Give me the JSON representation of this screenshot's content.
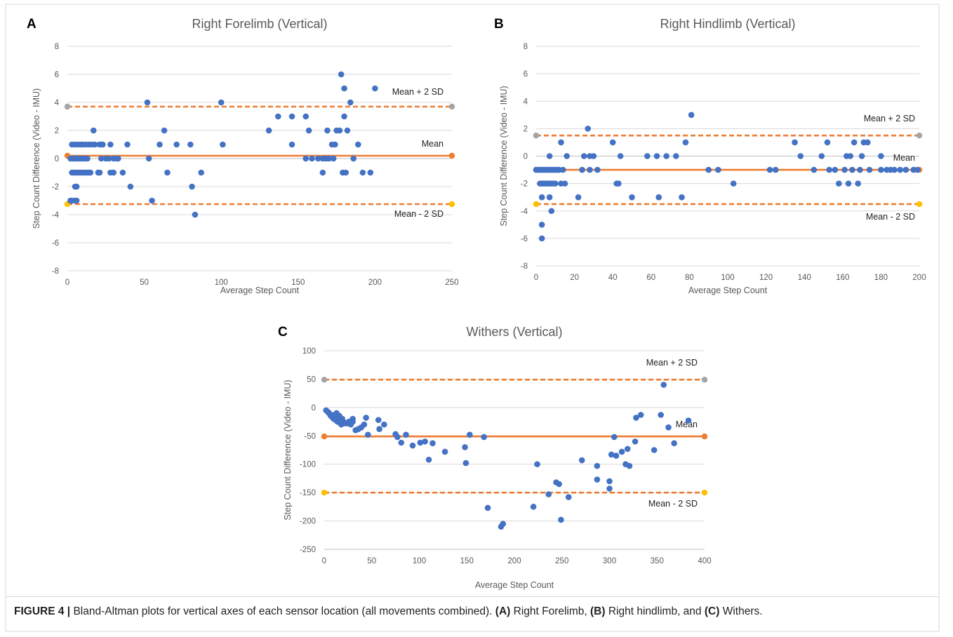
{
  "caption": {
    "label": "FIGURE 4 |",
    "text_1": " Bland-Altman plots for vertical axes of each sensor location (all movements combined). ",
    "a": "(A)",
    "text_2": " Right Forelimb, ",
    "b": "(B)",
    "text_3": " Right hindlimb, and ",
    "c": "(C)",
    "text_4": " Withers."
  },
  "colors": {
    "points": "#4472c4",
    "mean_line": "#ed7d31",
    "upper_end": "#a5a5a5",
    "lower_end": "#ffc000",
    "grid": "#d9d9d9",
    "axis_text": "#595959"
  },
  "chart_data": [
    {
      "panel": "A",
      "type": "scatter",
      "title": "Right Forelimb (Vertical)",
      "xlabel": "Average Step Count",
      "ylabel": "Step Count Difference (Video - IMU)",
      "xlim": [
        0,
        250
      ],
      "ylim": [
        -8,
        8
      ],
      "xticks": [
        0,
        50,
        100,
        150,
        200,
        250
      ],
      "yticks": [
        -8,
        -6,
        -4,
        -2,
        0,
        2,
        4,
        6,
        8
      ],
      "grid": "horizontal",
      "lines": [
        {
          "label": "Mean + 2 SD",
          "value": 3.7,
          "style": "dashed"
        },
        {
          "label": "Mean",
          "value": 0.2,
          "style": "solid"
        },
        {
          "label": "Mean - 2 SD",
          "value": -3.25,
          "style": "dashed"
        }
      ],
      "points": [
        [
          2,
          -3
        ],
        [
          3,
          -3
        ],
        [
          5,
          -3
        ],
        [
          6,
          -3
        ],
        [
          2,
          0
        ],
        [
          3,
          0
        ],
        [
          4,
          0
        ],
        [
          5,
          0
        ],
        [
          6,
          0
        ],
        [
          7,
          0
        ],
        [
          8,
          0
        ],
        [
          9,
          0
        ],
        [
          10,
          0
        ],
        [
          11,
          0
        ],
        [
          12,
          0
        ],
        [
          13,
          0
        ],
        [
          3,
          1
        ],
        [
          5,
          1
        ],
        [
          7,
          1
        ],
        [
          9,
          1
        ],
        [
          10,
          1
        ],
        [
          12,
          1
        ],
        [
          14,
          1
        ],
        [
          16,
          1
        ],
        [
          18,
          1
        ],
        [
          21,
          1
        ],
        [
          22,
          1
        ],
        [
          23,
          1
        ],
        [
          3,
          -1
        ],
        [
          4,
          -1
        ],
        [
          5,
          -1
        ],
        [
          6,
          -1
        ],
        [
          7,
          -1
        ],
        [
          8,
          -1
        ],
        [
          9,
          -1
        ],
        [
          10,
          -1
        ],
        [
          11,
          -1
        ],
        [
          12,
          -1
        ],
        [
          13,
          -1
        ],
        [
          14,
          -1
        ],
        [
          15,
          -1
        ],
        [
          5,
          -2
        ],
        [
          6,
          -2
        ],
        [
          17,
          2
        ],
        [
          20,
          -1
        ],
        [
          21,
          -1
        ],
        [
          22,
          0
        ],
        [
          25,
          0
        ],
        [
          27,
          0
        ],
        [
          28,
          1
        ],
        [
          28,
          -1
        ],
        [
          30,
          -1
        ],
        [
          30,
          0
        ],
        [
          32,
          0
        ],
        [
          33,
          0
        ],
        [
          36,
          -1
        ],
        [
          39,
          1
        ],
        [
          41,
          -2
        ],
        [
          52,
          4
        ],
        [
          53,
          0
        ],
        [
          55,
          -3
        ],
        [
          60,
          1
        ],
        [
          63,
          2
        ],
        [
          65,
          -1
        ],
        [
          71,
          1
        ],
        [
          80,
          1
        ],
        [
          81,
          -2
        ],
        [
          83,
          -4
        ],
        [
          87,
          -1
        ],
        [
          100,
          4
        ],
        [
          101,
          1
        ],
        [
          131,
          2
        ],
        [
          137,
          3
        ],
        [
          146,
          3
        ],
        [
          146,
          1
        ],
        [
          155,
          3
        ],
        [
          155,
          0
        ],
        [
          157,
          2
        ],
        [
          159,
          0
        ],
        [
          163,
          0
        ],
        [
          166,
          -1
        ],
        [
          166,
          0
        ],
        [
          168,
          0
        ],
        [
          169,
          2
        ],
        [
          170,
          0
        ],
        [
          172,
          1
        ],
        [
          173,
          0
        ],
        [
          174,
          1
        ],
        [
          175,
          2
        ],
        [
          177,
          2
        ],
        [
          178,
          6
        ],
        [
          179,
          -1
        ],
        [
          180,
          5
        ],
        [
          180,
          3
        ],
        [
          181,
          -1
        ],
        [
          182,
          2
        ],
        [
          184,
          4
        ],
        [
          186,
          0
        ],
        [
          189,
          1
        ],
        [
          192,
          -1
        ],
        [
          197,
          -1
        ],
        [
          200,
          5
        ]
      ]
    },
    {
      "panel": "B",
      "type": "scatter",
      "title": "Right Hindlimb (Vertical)",
      "xlabel": "Average Step Count",
      "ylabel": "Step Count Difference (Video - IMU)",
      "xlim": [
        0,
        200
      ],
      "ylim": [
        -8,
        8
      ],
      "xticks": [
        0,
        20,
        40,
        60,
        80,
        100,
        120,
        140,
        160,
        180,
        200
      ],
      "yticks": [
        -8,
        -6,
        -4,
        -2,
        0,
        2,
        4,
        6,
        8
      ],
      "grid": "horizontal",
      "lines": [
        {
          "label": "Mean + 2 SD",
          "value": 1.5,
          "style": "dashed"
        },
        {
          "label": "Mean",
          "value": -1.0,
          "style": "solid"
        },
        {
          "label": "Mean - 2 SD",
          "value": -3.5,
          "style": "dashed"
        }
      ],
      "points": [
        [
          0,
          -1
        ],
        [
          1,
          -1
        ],
        [
          2,
          -1
        ],
        [
          3,
          -1
        ],
        [
          4,
          -1
        ],
        [
          5,
          -1
        ],
        [
          6,
          -1
        ],
        [
          7,
          -1
        ],
        [
          8,
          -1
        ],
        [
          9,
          -1
        ],
        [
          10,
          -1
        ],
        [
          11,
          -1
        ],
        [
          12,
          -1
        ],
        [
          14,
          -1
        ],
        [
          2,
          -2
        ],
        [
          3,
          -2
        ],
        [
          4,
          -2
        ],
        [
          5,
          -2
        ],
        [
          6,
          -2
        ],
        [
          7,
          -2
        ],
        [
          8,
          -2
        ],
        [
          9,
          -2
        ],
        [
          10,
          -2
        ],
        [
          13,
          -2
        ],
        [
          15,
          -2
        ],
        [
          3,
          -3
        ],
        [
          7,
          -3
        ],
        [
          3,
          -5
        ],
        [
          3,
          -6
        ],
        [
          8,
          -4
        ],
        [
          7,
          0
        ],
        [
          13,
          1
        ],
        [
          16,
          0
        ],
        [
          22,
          -3
        ],
        [
          24,
          -1
        ],
        [
          25,
          0
        ],
        [
          27,
          2
        ],
        [
          28,
          0
        ],
        [
          28,
          -1
        ],
        [
          30,
          0
        ],
        [
          32,
          -1
        ],
        [
          40,
          1
        ],
        [
          42,
          -2
        ],
        [
          43,
          -2
        ],
        [
          44,
          0
        ],
        [
          50,
          -3
        ],
        [
          58,
          0
        ],
        [
          63,
          0
        ],
        [
          64,
          -3
        ],
        [
          68,
          0
        ],
        [
          73,
          0
        ],
        [
          76,
          -3
        ],
        [
          78,
          1
        ],
        [
          81,
          3
        ],
        [
          90,
          -1
        ],
        [
          95,
          -1
        ],
        [
          103,
          -2
        ],
        [
          122,
          -1
        ],
        [
          125,
          -1
        ],
        [
          135,
          1
        ],
        [
          138,
          0
        ],
        [
          145,
          -1
        ],
        [
          149,
          0
        ],
        [
          152,
          1
        ],
        [
          153,
          -1
        ],
        [
          156,
          -1
        ],
        [
          158,
          -2
        ],
        [
          161,
          -1
        ],
        [
          162,
          0
        ],
        [
          163,
          -2
        ],
        [
          164,
          0
        ],
        [
          165,
          -1
        ],
        [
          166,
          1
        ],
        [
          168,
          -2
        ],
        [
          169,
          -1
        ],
        [
          170,
          0
        ],
        [
          171,
          1
        ],
        [
          173,
          1
        ],
        [
          174,
          -1
        ],
        [
          180,
          -1
        ],
        [
          180,
          0
        ],
        [
          183,
          -1
        ],
        [
          185,
          -1
        ],
        [
          187,
          -1
        ],
        [
          190,
          -1
        ],
        [
          193,
          -1
        ],
        [
          197,
          -1
        ],
        [
          199,
          -1
        ]
      ]
    },
    {
      "panel": "C",
      "type": "scatter",
      "title": "Withers (Vertical)",
      "xlabel": "Average Step Count",
      "ylabel": "Step Count Difference (Video - IMU)",
      "xlim": [
        0,
        400
      ],
      "ylim": [
        -250,
        100
      ],
      "xticks": [
        0,
        50,
        100,
        150,
        200,
        250,
        300,
        350,
        400
      ],
      "yticks": [
        -250,
        -200,
        -150,
        -100,
        -50,
        0,
        50,
        100
      ],
      "grid": "horizontal",
      "lines": [
        {
          "label": "Mean + 2 SD",
          "value": 49,
          "style": "dashed"
        },
        {
          "label": "Mean",
          "value": -51,
          "style": "solid"
        },
        {
          "label": "Mean - 2 SD",
          "value": -150,
          "style": "dashed"
        }
      ],
      "points": [
        [
          2,
          -5
        ],
        [
          4,
          -8
        ],
        [
          5,
          -10
        ],
        [
          6,
          -12
        ],
        [
          7,
          -15
        ],
        [
          8,
          -13
        ],
        [
          9,
          -18
        ],
        [
          10,
          -20
        ],
        [
          11,
          -15
        ],
        [
          12,
          -22
        ],
        [
          13,
          -18
        ],
        [
          13,
          -10
        ],
        [
          14,
          -25
        ],
        [
          15,
          -20
        ],
        [
          16,
          -15
        ],
        [
          17,
          -28
        ],
        [
          18,
          -30
        ],
        [
          19,
          -20
        ],
        [
          20,
          -25
        ],
        [
          22,
          -28
        ],
        [
          24,
          -28
        ],
        [
          26,
          -25
        ],
        [
          28,
          -30
        ],
        [
          30,
          -25
        ],
        [
          30,
          -20
        ],
        [
          33,
          -40
        ],
        [
          36,
          -38
        ],
        [
          39,
          -35
        ],
        [
          42,
          -30
        ],
        [
          44,
          -18
        ],
        [
          46,
          -48
        ],
        [
          57,
          -22
        ],
        [
          58,
          -38
        ],
        [
          63,
          -30
        ],
        [
          75,
          -47
        ],
        [
          77,
          -52
        ],
        [
          81,
          -62
        ],
        [
          86,
          -48
        ],
        [
          93,
          -67
        ],
        [
          101,
          -62
        ],
        [
          106,
          -60
        ],
        [
          110,
          -92
        ],
        [
          114,
          -63
        ],
        [
          127,
          -78
        ],
        [
          148,
          -70
        ],
        [
          149,
          -98
        ],
        [
          153,
          -48
        ],
        [
          168,
          -52
        ],
        [
          172,
          -177
        ],
        [
          186,
          -210
        ],
        [
          188,
          -205
        ],
        [
          220,
          -175
        ],
        [
          224,
          -100
        ],
        [
          236,
          -153
        ],
        [
          244,
          -132
        ],
        [
          247,
          -135
        ],
        [
          249,
          -198
        ],
        [
          257,
          -158
        ],
        [
          271,
          -93
        ],
        [
          287,
          -127
        ],
        [
          287,
          -103
        ],
        [
          300,
          -143
        ],
        [
          300,
          -130
        ],
        [
          302,
          -83
        ],
        [
          305,
          -52
        ],
        [
          307,
          -85
        ],
        [
          313,
          -78
        ],
        [
          317,
          -100
        ],
        [
          319,
          -73
        ],
        [
          321,
          -103
        ],
        [
          327,
          -60
        ],
        [
          328,
          -18
        ],
        [
          333,
          -13
        ],
        [
          347,
          -75
        ],
        [
          354,
          -13
        ],
        [
          357,
          40
        ],
        [
          362,
          -35
        ],
        [
          368,
          -63
        ],
        [
          383,
          -23
        ]
      ]
    }
  ]
}
